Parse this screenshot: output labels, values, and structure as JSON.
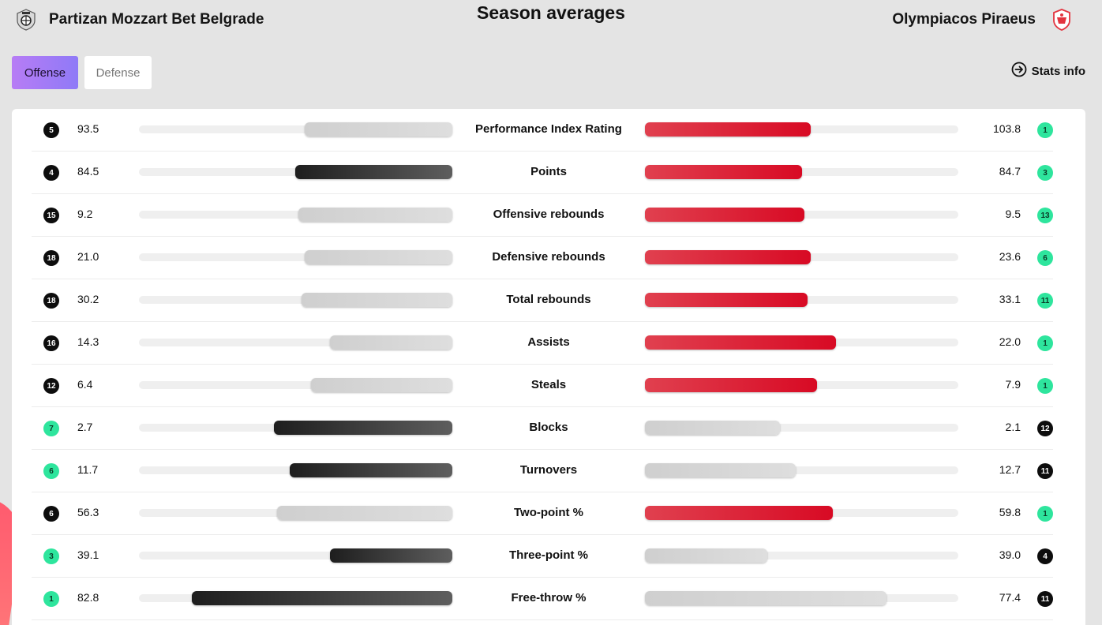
{
  "title": "Season averages",
  "home_team": {
    "name": "Partizan Mozzart Bet Belgrade",
    "logo_icon": "partizan-crest-icon"
  },
  "away_team": {
    "name": "Olympiacos Piraeus",
    "logo_icon": "olympiacos-crest-icon"
  },
  "tabs": [
    {
      "label": "Offense",
      "active": true
    },
    {
      "label": "Defense",
      "active": false
    }
  ],
  "stats_info": {
    "label": "Stats info",
    "icon": "arrow-circle-right-icon"
  },
  "colors": {
    "accent_gradient_start": "#b77cf5",
    "accent_gradient_end": "#8f7af7",
    "rank_top": "#2ee59d",
    "rank_low": "#0d0d0d",
    "away_bar": "#d80a24",
    "home_bar_dark": "#1e1e1e",
    "bar_neutral": "#cfcfcf"
  },
  "chart_data": {
    "type": "bar",
    "categories": [
      "Performance Index Rating",
      "Points",
      "Offensive rebounds",
      "Defensive rebounds",
      "Total rebounds",
      "Assists",
      "Steals",
      "Blocks",
      "Turnovers",
      "Two-point %",
      "Three-point %",
      "Free-throw %"
    ],
    "series": [
      {
        "name": "Partizan Mozzart Bet Belgrade",
        "values": [
          93.5,
          84.5,
          9.2,
          21.0,
          30.2,
          14.3,
          6.4,
          2.7,
          11.7,
          56.3,
          39.1,
          82.8
        ]
      },
      {
        "name": "Olympiacos Piraeus",
        "values": [
          103.8,
          84.7,
          9.5,
          23.6,
          33.1,
          22.0,
          7.9,
          2.1,
          12.7,
          59.8,
          39.0,
          77.4
        ]
      }
    ]
  },
  "rows": [
    {
      "label": "Performance Index Rating",
      "home_value": "93.5",
      "home_rank": "5",
      "home_fill": 0.47,
      "home_style": "gray",
      "away_value": "103.8",
      "away_rank": "1",
      "away_fill": 0.53,
      "away_style": "red"
    },
    {
      "label": "Points",
      "home_value": "84.5",
      "home_rank": "4",
      "home_fill": 0.5,
      "home_style": "dark",
      "away_value": "84.7",
      "away_rank": "3",
      "away_fill": 0.5,
      "away_style": "red"
    },
    {
      "label": "Offensive rebounds",
      "home_value": "9.2",
      "home_rank": "15",
      "home_fill": 0.49,
      "home_style": "gray",
      "away_value": "9.5",
      "away_rank": "13",
      "away_fill": 0.51,
      "away_style": "red"
    },
    {
      "label": "Defensive rebounds",
      "home_value": "21.0",
      "home_rank": "18",
      "home_fill": 0.47,
      "home_style": "gray",
      "away_value": "23.6",
      "away_rank": "6",
      "away_fill": 0.53,
      "away_style": "red"
    },
    {
      "label": "Total rebounds",
      "home_value": "30.2",
      "home_rank": "18",
      "home_fill": 0.48,
      "home_style": "gray",
      "away_value": "33.1",
      "away_rank": "11",
      "away_fill": 0.52,
      "away_style": "red"
    },
    {
      "label": "Assists",
      "home_value": "14.3",
      "home_rank": "16",
      "home_fill": 0.39,
      "home_style": "gray",
      "away_value": "22.0",
      "away_rank": "1",
      "away_fill": 0.61,
      "away_style": "red"
    },
    {
      "label": "Steals",
      "home_value": "6.4",
      "home_rank": "12",
      "home_fill": 0.45,
      "home_style": "gray",
      "away_value": "7.9",
      "away_rank": "1",
      "away_fill": 0.55,
      "away_style": "red"
    },
    {
      "label": "Blocks",
      "home_value": "2.7",
      "home_rank": "7",
      "home_fill": 0.57,
      "home_style": "dark",
      "away_value": "2.1",
      "away_rank": "12",
      "away_fill": 0.43,
      "away_style": "gray"
    },
    {
      "label": "Turnovers",
      "home_value": "11.7",
      "home_rank": "6",
      "home_fill": 0.52,
      "home_style": "dark",
      "away_value": "12.7",
      "away_rank": "11",
      "away_fill": 0.48,
      "away_style": "gray"
    },
    {
      "label": "Two-point %",
      "home_value": "56.3",
      "home_rank": "6",
      "home_fill": 0.56,
      "home_style": "gray",
      "away_value": "59.8",
      "away_rank": "1",
      "away_fill": 0.6,
      "away_style": "red"
    },
    {
      "label": "Three-point %",
      "home_value": "39.1",
      "home_rank": "3",
      "home_fill": 0.39,
      "home_style": "dark",
      "away_value": "39.0",
      "away_rank": "4",
      "away_fill": 0.39,
      "away_style": "gray"
    },
    {
      "label": "Free-throw %",
      "home_value": "82.8",
      "home_rank": "1",
      "home_fill": 0.83,
      "home_style": "dark",
      "away_value": "77.4",
      "away_rank": "11",
      "away_fill": 0.77,
      "away_style": "gray"
    }
  ]
}
